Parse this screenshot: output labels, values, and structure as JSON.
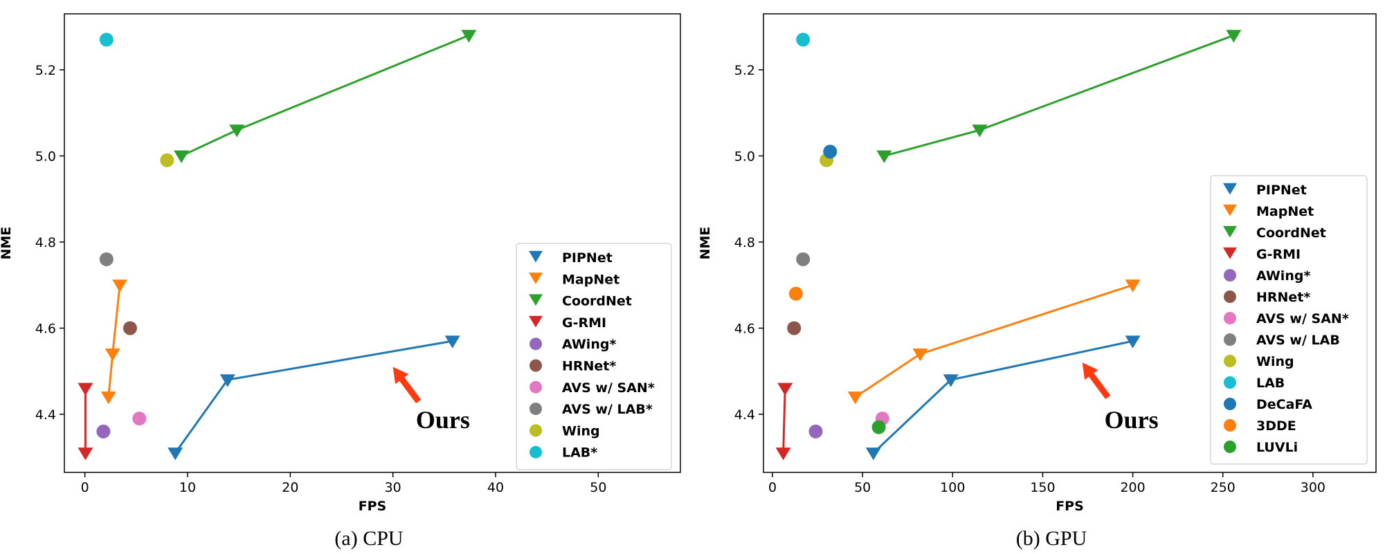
{
  "colors": {
    "PIPNet": "#1f77b4",
    "MapNet": "#ff7f0e",
    "CoordNet": "#2ca02c",
    "G-RMI": "#d62728",
    "AWing": "#9467bd",
    "HRNet": "#8c564b",
    "AVS_SAN": "#e377c2",
    "AVS_LAB": "#7f7f7f",
    "Wing": "#bcbd22",
    "LAB": "#17becf",
    "DeCaFA": "#1f77b4",
    "3DDE": "#ff7f0e",
    "LUVLi": "#2ca02c",
    "annotation_arrow": "#ff3a10"
  },
  "chart_data": [
    {
      "id": "cpu",
      "type": "scatter",
      "title": "",
      "caption": "(a)  CPU",
      "xlabel": "FPS",
      "ylabel": "NME",
      "xlim": [
        -2,
        58
      ],
      "ylim": [
        4.265,
        5.33
      ],
      "xticks": [
        0,
        10,
        20,
        30,
        40,
        50
      ],
      "xtick_labels": [
        "0",
        "10",
        "20",
        "30",
        "40",
        "50"
      ],
      "yticks": [
        4.4,
        4.6,
        4.8,
        5.0,
        5.2
      ],
      "ytick_labels": [
        "4.4",
        "4.6",
        "4.8",
        "5.0",
        "5.2"
      ],
      "grid": false,
      "legend_location": "lower-right",
      "annotation": {
        "text": "Ours",
        "arrow_at": [
          30,
          4.51
        ],
        "text_at": [
          35,
          4.39
        ]
      },
      "series": [
        {
          "name": "PIPNet",
          "label": "PIPNet",
          "marker": "triangle-down",
          "color_key": "PIPNet",
          "line": true,
          "points": [
            [
              8.8,
              4.31
            ],
            [
              13.9,
              4.48
            ],
            [
              35.8,
              4.57
            ]
          ]
        },
        {
          "name": "MapNet",
          "label": "MapNet",
          "marker": "triangle-down",
          "color_key": "MapNet",
          "line": true,
          "points": [
            [
              2.3,
              4.44
            ],
            [
              2.7,
              4.54
            ],
            [
              3.4,
              4.7
            ]
          ]
        },
        {
          "name": "CoordNet",
          "label": "CoordNet",
          "marker": "triangle-down",
          "color_key": "CoordNet",
          "line": true,
          "points": [
            [
              9.4,
              5.0
            ],
            [
              14.8,
              5.06
            ],
            [
              37.4,
              5.28
            ]
          ]
        },
        {
          "name": "G-RMI",
          "label": "G-RMI",
          "marker": "triangle-down",
          "color_key": "G-RMI",
          "line": true,
          "points": [
            [
              0.05,
              4.31
            ],
            [
              0.05,
              4.46
            ]
          ]
        },
        {
          "name": "AWing",
          "label": "AWing*",
          "marker": "circle",
          "color_key": "AWing",
          "line": false,
          "points": [
            [
              1.8,
              4.36
            ]
          ]
        },
        {
          "name": "HRNet",
          "label": "HRNet*",
          "marker": "circle",
          "color_key": "HRNet",
          "line": false,
          "points": [
            [
              4.4,
              4.6
            ]
          ]
        },
        {
          "name": "AVS_SAN",
          "label": "AVS w/ SAN*",
          "marker": "circle",
          "color_key": "AVS_SAN",
          "line": false,
          "points": [
            [
              5.3,
              4.39
            ]
          ]
        },
        {
          "name": "AVS_LAB",
          "label": "AVS w/ LAB*",
          "marker": "circle",
          "color_key": "AVS_LAB",
          "line": false,
          "points": [
            [
              2.1,
              4.76
            ]
          ]
        },
        {
          "name": "Wing",
          "label": "Wing",
          "marker": "circle",
          "color_key": "Wing",
          "line": false,
          "points": [
            [
              8.0,
              4.99
            ]
          ]
        },
        {
          "name": "LAB",
          "label": "LAB*",
          "marker": "circle",
          "color_key": "LAB",
          "line": false,
          "points": [
            [
              2.1,
              5.27
            ]
          ]
        }
      ]
    },
    {
      "id": "gpu",
      "type": "scatter",
      "title": "",
      "caption": "(b)  GPU",
      "xlabel": "FPS",
      "ylabel": "NME",
      "xlim": [
        -5,
        335
      ],
      "ylim": [
        4.265,
        5.33
      ],
      "xticks": [
        0,
        50,
        100,
        150,
        200,
        250,
        300
      ],
      "xtick_labels": [
        "0",
        "50",
        "100",
        "150",
        "200",
        "250",
        "300"
      ],
      "yticks": [
        4.4,
        4.6,
        4.8,
        5.0,
        5.2
      ],
      "ytick_labels": [
        "4.4",
        "4.6",
        "4.8",
        "5.0",
        "5.2"
      ],
      "grid": false,
      "legend_location": "lower-right",
      "annotation": {
        "text": "Ours",
        "arrow_at": [
          172,
          4.52
        ],
        "text_at": [
          200,
          4.39
        ]
      },
      "series": [
        {
          "name": "PIPNet",
          "label": "PIPNet",
          "marker": "triangle-down",
          "color_key": "PIPNet",
          "line": true,
          "points": [
            [
              56,
              4.31
            ],
            [
              99,
              4.48
            ],
            [
              200,
              4.57
            ]
          ]
        },
        {
          "name": "MapNet",
          "label": "MapNet",
          "marker": "triangle-down",
          "color_key": "MapNet",
          "line": true,
          "points": [
            [
              46,
              4.44
            ],
            [
              82,
              4.54
            ],
            [
              200,
              4.7
            ]
          ]
        },
        {
          "name": "CoordNet",
          "label": "CoordNet",
          "marker": "triangle-down",
          "color_key": "CoordNet",
          "line": true,
          "points": [
            [
              62,
              5.0
            ],
            [
              115,
              5.06
            ],
            [
              256,
              5.28
            ]
          ]
        },
        {
          "name": "G-RMI",
          "label": "G-RMI",
          "marker": "triangle-down",
          "color_key": "G-RMI",
          "line": true,
          "points": [
            [
              6,
              4.31
            ],
            [
              7,
              4.46
            ]
          ]
        },
        {
          "name": "AWing",
          "label": "AWing*",
          "marker": "circle",
          "color_key": "AWing",
          "line": false,
          "points": [
            [
              24,
              4.36
            ]
          ]
        },
        {
          "name": "HRNet",
          "label": "HRNet*",
          "marker": "circle",
          "color_key": "HRNet",
          "line": false,
          "points": [
            [
              12,
              4.6
            ]
          ]
        },
        {
          "name": "AVS_SAN",
          "label": "AVS w/ SAN*",
          "marker": "circle",
          "color_key": "AVS_SAN",
          "line": false,
          "points": [
            [
              61,
              4.39
            ]
          ]
        },
        {
          "name": "AVS_LAB",
          "label": "AVS w/ LAB",
          "marker": "circle",
          "color_key": "AVS_LAB",
          "line": false,
          "points": [
            [
              17,
              4.76
            ]
          ]
        },
        {
          "name": "Wing",
          "label": "Wing",
          "marker": "circle",
          "color_key": "Wing",
          "line": false,
          "points": [
            [
              30,
              4.99
            ]
          ]
        },
        {
          "name": "LAB",
          "label": "LAB",
          "marker": "circle",
          "color_key": "LAB",
          "line": false,
          "points": [
            [
              17,
              5.27
            ]
          ]
        },
        {
          "name": "DeCaFA",
          "label": "DeCaFA",
          "marker": "circle",
          "color_key": "DeCaFA",
          "line": false,
          "points": [
            [
              32,
              5.01
            ]
          ]
        },
        {
          "name": "3DDE",
          "label": "3DDE",
          "marker": "circle",
          "color_key": "3DDE",
          "line": false,
          "points": [
            [
              13,
              4.68
            ]
          ]
        },
        {
          "name": "LUVLi",
          "label": "LUVLi",
          "marker": "circle",
          "color_key": "LUVLi",
          "line": false,
          "points": [
            [
              59,
              4.37
            ]
          ]
        }
      ]
    }
  ]
}
